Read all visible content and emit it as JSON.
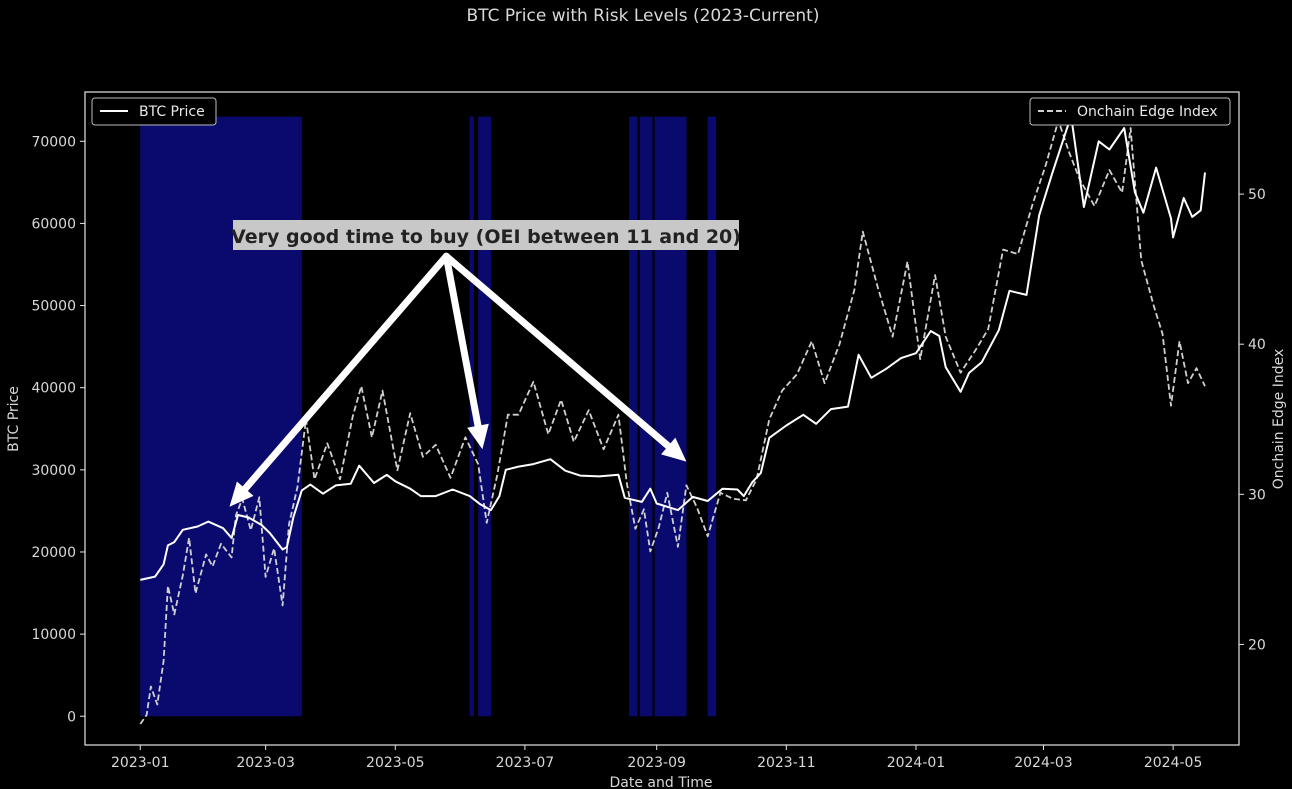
{
  "chart_data": {
    "type": "line",
    "title": "BTC Price with Risk Levels (2023-Current)",
    "xlabel": "Date and Time",
    "ylabel": "BTC Price",
    "ylabel_right": "Onchain Edge Index",
    "x_ticks": [
      "2023-01",
      "2023-03",
      "2023-05",
      "2023-07",
      "2023-09",
      "2023-11",
      "2024-01",
      "2024-03",
      "2024-05"
    ],
    "y_left_ticks": [
      0,
      10000,
      20000,
      30000,
      40000,
      50000,
      60000,
      70000
    ],
    "y_right_ticks": [
      20,
      30,
      40,
      50
    ],
    "ylim_left": [
      -3500,
      76000
    ],
    "ylim_right": [
      13.3,
      56.8
    ],
    "xlim": [
      "2022-12-06",
      "2024-06-01"
    ],
    "grid": false,
    "background": "#000000",
    "band_color": "#0a0a6e",
    "highlight_bands": [
      {
        "start": "2023-01-01",
        "end": "2023-03-18"
      },
      {
        "start": "2023-06-05",
        "end": "2023-06-07"
      },
      {
        "start": "2023-06-09",
        "end": "2023-06-15"
      },
      {
        "start": "2023-08-19",
        "end": "2023-08-23"
      },
      {
        "start": "2023-08-24",
        "end": "2023-08-30"
      },
      {
        "start": "2023-08-31",
        "end": "2023-09-15"
      },
      {
        "start": "2023-09-25",
        "end": "2023-09-29"
      }
    ],
    "annotation": {
      "text": "Very good time to buy (OEI between 11 and 20)",
      "origin": {
        "date": "2023-05-25",
        "y": 56000
      },
      "arrow_targets": [
        {
          "date": "2023-02-12",
          "y": 25500
        },
        {
          "date": "2023-06-11",
          "y": 32500
        },
        {
          "date": "2023-09-15",
          "y": 31000
        }
      ]
    },
    "series": [
      {
        "name": "BTC Price",
        "axis": "left",
        "style": "solid",
        "color": "#ffffff",
        "points": [
          [
            "2023-01-01",
            16600
          ],
          [
            "2023-01-08",
            17000
          ],
          [
            "2023-01-12",
            18500
          ],
          [
            "2023-01-14",
            20800
          ],
          [
            "2023-01-17",
            21200
          ],
          [
            "2023-01-21",
            22700
          ],
          [
            "2023-01-28",
            23100
          ],
          [
            "2023-02-02",
            23700
          ],
          [
            "2023-02-09",
            22900
          ],
          [
            "2023-02-13",
            21700
          ],
          [
            "2023-02-16",
            24500
          ],
          [
            "2023-02-21",
            24200
          ],
          [
            "2023-02-27",
            23300
          ],
          [
            "2023-03-03",
            22300
          ],
          [
            "2023-03-09",
            20300
          ],
          [
            "2023-03-11",
            20600
          ],
          [
            "2023-03-14",
            24200
          ],
          [
            "2023-03-18",
            27500
          ],
          [
            "2023-03-22",
            28200
          ],
          [
            "2023-03-28",
            27100
          ],
          [
            "2023-04-03",
            28100
          ],
          [
            "2023-04-10",
            28300
          ],
          [
            "2023-04-14",
            30500
          ],
          [
            "2023-04-21",
            28400
          ],
          [
            "2023-04-27",
            29400
          ],
          [
            "2023-05-01",
            28600
          ],
          [
            "2023-05-08",
            27700
          ],
          [
            "2023-05-13",
            26800
          ],
          [
            "2023-05-20",
            26800
          ],
          [
            "2023-05-28",
            27600
          ],
          [
            "2023-06-05",
            26800
          ],
          [
            "2023-06-10",
            25800
          ],
          [
            "2023-06-15",
            25100
          ],
          [
            "2023-06-19",
            26800
          ],
          [
            "2023-06-22",
            30000
          ],
          [
            "2023-06-28",
            30400
          ],
          [
            "2023-07-05",
            30700
          ],
          [
            "2023-07-13",
            31300
          ],
          [
            "2023-07-20",
            29900
          ],
          [
            "2023-07-27",
            29300
          ],
          [
            "2023-08-05",
            29200
          ],
          [
            "2023-08-14",
            29400
          ],
          [
            "2023-08-17",
            26600
          ],
          [
            "2023-08-25",
            26100
          ],
          [
            "2023-08-29",
            27700
          ],
          [
            "2023-09-01",
            25900
          ],
          [
            "2023-09-11",
            25100
          ],
          [
            "2023-09-18",
            26700
          ],
          [
            "2023-09-25",
            26200
          ],
          [
            "2023-10-02",
            27700
          ],
          [
            "2023-10-09",
            27600
          ],
          [
            "2023-10-12",
            26800
          ],
          [
            "2023-10-16",
            28500
          ],
          [
            "2023-10-20",
            29600
          ],
          [
            "2023-10-24",
            33900
          ],
          [
            "2023-11-01",
            35400
          ],
          [
            "2023-11-09",
            36700
          ],
          [
            "2023-11-15",
            35600
          ],
          [
            "2023-11-22",
            37400
          ],
          [
            "2023-11-30",
            37700
          ],
          [
            "2023-12-05",
            44000
          ],
          [
            "2023-12-11",
            41200
          ],
          [
            "2023-12-18",
            42300
          ],
          [
            "2023-12-25",
            43600
          ],
          [
            "2024-01-01",
            44200
          ],
          [
            "2024-01-08",
            46900
          ],
          [
            "2024-01-12",
            46300
          ],
          [
            "2024-01-15",
            42500
          ],
          [
            "2024-01-22",
            39500
          ],
          [
            "2024-01-26",
            41800
          ],
          [
            "2024-02-01",
            43100
          ],
          [
            "2024-02-09",
            47000
          ],
          [
            "2024-02-14",
            51800
          ],
          [
            "2024-02-22",
            51300
          ],
          [
            "2024-02-28",
            61000
          ],
          [
            "2024-03-05",
            66000
          ],
          [
            "2024-03-14",
            73100
          ],
          [
            "2024-03-20",
            62000
          ],
          [
            "2024-03-27",
            70000
          ],
          [
            "2024-04-01",
            69000
          ],
          [
            "2024-04-08",
            71600
          ],
          [
            "2024-04-13",
            63800
          ],
          [
            "2024-04-17",
            61300
          ],
          [
            "2024-04-23",
            66800
          ],
          [
            "2024-04-30",
            60600
          ],
          [
            "2024-05-01",
            58300
          ],
          [
            "2024-05-06",
            63100
          ],
          [
            "2024-05-10",
            60800
          ],
          [
            "2024-05-14",
            61600
          ],
          [
            "2024-05-16",
            66200
          ]
        ]
      },
      {
        "name": "Onchain Edge Index",
        "axis": "right",
        "style": "dashed",
        "color": "#d0d0d0",
        "points": [
          [
            "2023-01-01",
            14.7
          ],
          [
            "2023-01-04",
            15.3
          ],
          [
            "2023-01-06",
            17.2
          ],
          [
            "2023-01-09",
            16.0
          ],
          [
            "2023-01-12",
            18.9
          ],
          [
            "2023-01-14",
            23.9
          ],
          [
            "2023-01-17",
            22.0
          ],
          [
            "2023-01-21",
            24.6
          ],
          [
            "2023-01-24",
            27.1
          ],
          [
            "2023-01-27",
            23.4
          ],
          [
            "2023-02-01",
            26.0
          ],
          [
            "2023-02-04",
            25.2
          ],
          [
            "2023-02-08",
            26.7
          ],
          [
            "2023-02-13",
            25.8
          ],
          [
            "2023-02-15",
            28.6
          ],
          [
            "2023-02-18",
            29.7
          ],
          [
            "2023-02-22",
            27.6
          ],
          [
            "2023-02-26",
            29.8
          ],
          [
            "2023-03-01",
            24.5
          ],
          [
            "2023-03-05",
            26.4
          ],
          [
            "2023-03-09",
            22.6
          ],
          [
            "2023-03-12",
            28.0
          ],
          [
            "2023-03-16",
            30.5
          ],
          [
            "2023-03-20",
            35.0
          ],
          [
            "2023-03-24",
            31.0
          ],
          [
            "2023-03-30",
            33.4
          ],
          [
            "2023-04-05",
            31.0
          ],
          [
            "2023-04-11",
            35.2
          ],
          [
            "2023-04-15",
            37.2
          ],
          [
            "2023-04-20",
            33.8
          ],
          [
            "2023-04-25",
            36.9
          ],
          [
            "2023-05-02",
            31.6
          ],
          [
            "2023-05-08",
            35.4
          ],
          [
            "2023-05-14",
            32.5
          ],
          [
            "2023-05-20",
            33.3
          ],
          [
            "2023-05-27",
            31.1
          ],
          [
            "2023-06-03",
            33.8
          ],
          [
            "2023-06-09",
            32.0
          ],
          [
            "2023-06-13",
            28.1
          ],
          [
            "2023-06-18",
            31.3
          ],
          [
            "2023-06-23",
            35.3
          ],
          [
            "2023-06-28",
            35.3
          ],
          [
            "2023-07-05",
            37.5
          ],
          [
            "2023-07-12",
            34.0
          ],
          [
            "2023-07-18",
            36.3
          ],
          [
            "2023-07-24",
            33.5
          ],
          [
            "2023-07-31",
            35.6
          ],
          [
            "2023-08-07",
            33.0
          ],
          [
            "2023-08-14",
            35.3
          ],
          [
            "2023-08-18",
            30.7
          ],
          [
            "2023-08-22",
            27.7
          ],
          [
            "2023-08-26",
            29.0
          ],
          [
            "2023-08-29",
            26.2
          ],
          [
            "2023-09-02",
            27.8
          ],
          [
            "2023-09-06",
            30.1
          ],
          [
            "2023-09-11",
            26.5
          ],
          [
            "2023-09-15",
            30.6
          ],
          [
            "2023-09-20",
            29.1
          ],
          [
            "2023-09-25",
            27.2
          ],
          [
            "2023-10-01",
            30.1
          ],
          [
            "2023-10-07",
            29.7
          ],
          [
            "2023-10-13",
            29.6
          ],
          [
            "2023-10-18",
            31.0
          ],
          [
            "2023-10-24",
            35.0
          ],
          [
            "2023-10-30",
            36.9
          ],
          [
            "2023-11-06",
            38.0
          ],
          [
            "2023-11-13",
            40.2
          ],
          [
            "2023-11-19",
            37.4
          ],
          [
            "2023-11-26",
            40.0
          ],
          [
            "2023-12-03",
            43.6
          ],
          [
            "2023-12-07",
            47.5
          ],
          [
            "2023-12-14",
            43.8
          ],
          [
            "2023-12-21",
            40.5
          ],
          [
            "2023-12-28",
            45.5
          ],
          [
            "2024-01-03",
            39.0
          ],
          [
            "2024-01-10",
            44.6
          ],
          [
            "2024-01-15",
            40.5
          ],
          [
            "2024-01-22",
            38.1
          ],
          [
            "2024-01-29",
            39.6
          ],
          [
            "2024-02-04",
            41.0
          ],
          [
            "2024-02-11",
            46.3
          ],
          [
            "2024-02-18",
            46.0
          ],
          [
            "2024-02-25",
            49.4
          ],
          [
            "2024-03-02",
            51.9
          ],
          [
            "2024-03-08",
            54.9
          ],
          [
            "2024-03-13",
            52.8
          ],
          [
            "2024-03-18",
            51.0
          ],
          [
            "2024-03-25",
            49.2
          ],
          [
            "2024-04-01",
            51.6
          ],
          [
            "2024-04-07",
            50.1
          ],
          [
            "2024-04-11",
            54.4
          ],
          [
            "2024-04-16",
            45.6
          ],
          [
            "2024-04-22",
            42.5
          ],
          [
            "2024-04-26",
            40.7
          ],
          [
            "2024-04-30",
            35.9
          ],
          [
            "2024-05-04",
            40.2
          ],
          [
            "2024-05-08",
            37.4
          ],
          [
            "2024-05-12",
            38.4
          ],
          [
            "2024-05-16",
            37.2
          ]
        ]
      }
    ]
  }
}
